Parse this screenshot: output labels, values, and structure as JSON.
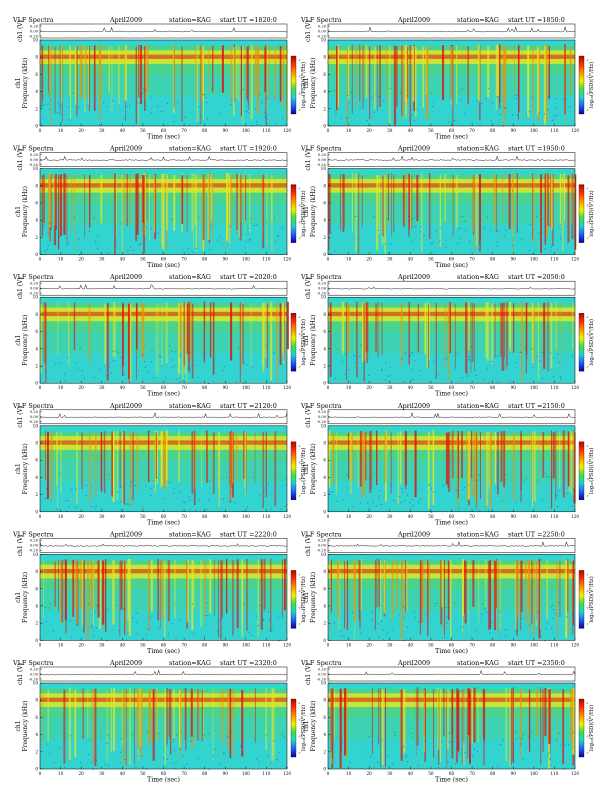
{
  "header_title": "VLF Spectra",
  "date": "April2009",
  "station_label": "station=KAG",
  "start_prefix": "start  UT  =",
  "waveform_label": "ch1 (V)",
  "waveform_ticks": [
    "0.20",
    "0.00",
    "-0.20"
  ],
  "y_axis_label": "Frequency  (kHz)",
  "y_axis_prefix": "ch1",
  "colorbar_label": "log₁₀(PSD)(V²/Hz)",
  "colorbar_ticks": [
    "-1",
    "-3",
    "-5",
    "-7"
  ],
  "x_axis_label": "Time  (sec)",
  "colors": {
    "background": "#33d4d0",
    "mid": "#4fd27a",
    "high": "#e8e820",
    "peak": "#dd1010",
    "low": "#1e5bd8",
    "colorbar": [
      "#c00000",
      "#ff3000",
      "#ff9000",
      "#f0f000",
      "#40e040",
      "#20d0d0",
      "#2060ff",
      "#0000a0"
    ]
  },
  "chart_data": [
    {
      "type": "heatmap",
      "start_ut": "1820:0",
      "x_range": [
        0,
        120
      ],
      "y_range": [
        0,
        10
      ],
      "xticks": [
        0,
        10,
        20,
        30,
        40,
        50,
        60,
        70,
        80,
        90,
        100,
        110,
        120
      ],
      "yticks": [
        0,
        2,
        4,
        6,
        8,
        10
      ],
      "xlabel": "Time  (sec)",
      "ylabel": "Frequency  (kHz)"
    },
    {
      "type": "heatmap",
      "start_ut": "1850:0",
      "x_range": [
        0,
        120
      ],
      "y_range": [
        0,
        10
      ],
      "xticks": [
        0,
        10,
        20,
        30,
        40,
        50,
        60,
        70,
        80,
        90,
        100,
        110,
        120
      ],
      "yticks": [
        0,
        2,
        4,
        6,
        8,
        10
      ],
      "xlabel": "Time  (sec)",
      "ylabel": "Frequency  (kHz)"
    },
    {
      "type": "heatmap",
      "start_ut": "1920:0",
      "x_range": [
        0,
        120
      ],
      "y_range": [
        0,
        10
      ],
      "xticks": [
        0,
        10,
        20,
        30,
        40,
        50,
        60,
        70,
        80,
        90,
        100,
        110,
        120
      ],
      "yticks": [
        0,
        2,
        4,
        6,
        8,
        10
      ],
      "xlabel": "Time  (sec)",
      "ylabel": "Frequency  (kHz)"
    },
    {
      "type": "heatmap",
      "start_ut": "1950:0",
      "x_range": [
        0,
        120
      ],
      "y_range": [
        0,
        10
      ],
      "xticks": [
        0,
        10,
        20,
        30,
        40,
        50,
        60,
        70,
        80,
        90,
        100,
        110,
        120
      ],
      "yticks": [
        0,
        2,
        4,
        6,
        8,
        10
      ],
      "xlabel": "Time  (sec)",
      "ylabel": "Frequency  (kHz)"
    },
    {
      "type": "heatmap",
      "start_ut": "2020:0",
      "x_range": [
        0,
        120
      ],
      "y_range": [
        0,
        10
      ],
      "xticks": [
        0,
        10,
        20,
        30,
        40,
        50,
        60,
        70,
        80,
        90,
        100,
        110,
        120
      ],
      "yticks": [
        0,
        2,
        4,
        6,
        8,
        10
      ],
      "xlabel": "Time  (sec)",
      "ylabel": "Frequency  (kHz)"
    },
    {
      "type": "heatmap",
      "start_ut": "2050:0",
      "x_range": [
        0,
        120
      ],
      "y_range": [
        0,
        10
      ],
      "xticks": [
        0,
        10,
        20,
        30,
        40,
        50,
        60,
        70,
        80,
        90,
        100,
        110,
        120
      ],
      "yticks": [
        0,
        2,
        4,
        6,
        8,
        10
      ],
      "xlabel": "Time  (sec)",
      "ylabel": "Frequency  (kHz)"
    },
    {
      "type": "heatmap",
      "start_ut": "2120:0",
      "x_range": [
        0,
        120
      ],
      "y_range": [
        0,
        10
      ],
      "xticks": [
        0,
        10,
        20,
        30,
        40,
        50,
        60,
        70,
        80,
        90,
        100,
        110,
        120
      ],
      "yticks": [
        0,
        2,
        4,
        6,
        8,
        10
      ],
      "xlabel": "Time  (sec)",
      "ylabel": "Frequency  (kHz)"
    },
    {
      "type": "heatmap",
      "start_ut": "2150:0",
      "x_range": [
        0,
        120
      ],
      "y_range": [
        0,
        10
      ],
      "xticks": [
        0,
        10,
        20,
        30,
        40,
        50,
        60,
        70,
        80,
        90,
        100,
        110,
        120
      ],
      "yticks": [
        0,
        2,
        4,
        6,
        8,
        10
      ],
      "xlabel": "Time  (sec)",
      "ylabel": "Frequency  (kHz)"
    },
    {
      "type": "heatmap",
      "start_ut": "2220:0",
      "x_range": [
        0,
        120
      ],
      "y_range": [
        0,
        10
      ],
      "xticks": [
        0,
        10,
        20,
        30,
        40,
        50,
        60,
        70,
        80,
        90,
        100,
        110,
        120
      ],
      "yticks": [
        0,
        2,
        4,
        6,
        8,
        10
      ],
      "xlabel": "Time  (sec)",
      "ylabel": "Frequency  (kHz)"
    },
    {
      "type": "heatmap",
      "start_ut": "2250:0",
      "x_range": [
        0,
        120
      ],
      "y_range": [
        0,
        10
      ],
      "xticks": [
        0,
        10,
        20,
        30,
        40,
        50,
        60,
        70,
        80,
        90,
        100,
        110,
        120
      ],
      "yticks": [
        0,
        2,
        4,
        6,
        8,
        10
      ],
      "xlabel": "Time  (sec)",
      "ylabel": "Frequency  (kHz)"
    },
    {
      "type": "heatmap",
      "start_ut": "2320:0",
      "x_range": [
        0,
        120
      ],
      "y_range": [
        0,
        10
      ],
      "xticks": [
        0,
        10,
        20,
        30,
        40,
        50,
        60,
        70,
        80,
        90,
        100,
        110,
        120
      ],
      "yticks": [
        0,
        2,
        4,
        6,
        8,
        10
      ],
      "xlabel": "Time  (sec)",
      "ylabel": "Frequency  (kHz)"
    },
    {
      "type": "heatmap",
      "start_ut": "2350:0",
      "x_range": [
        0,
        120
      ],
      "y_range": [
        0,
        10
      ],
      "xticks": [
        0,
        10,
        20,
        30,
        40,
        50,
        60,
        70,
        80,
        90,
        100,
        110,
        120
      ],
      "yticks": [
        0,
        2,
        4,
        6,
        8,
        10
      ],
      "xlabel": "Time  (sec)",
      "ylabel": "Frequency  (kHz)"
    }
  ]
}
